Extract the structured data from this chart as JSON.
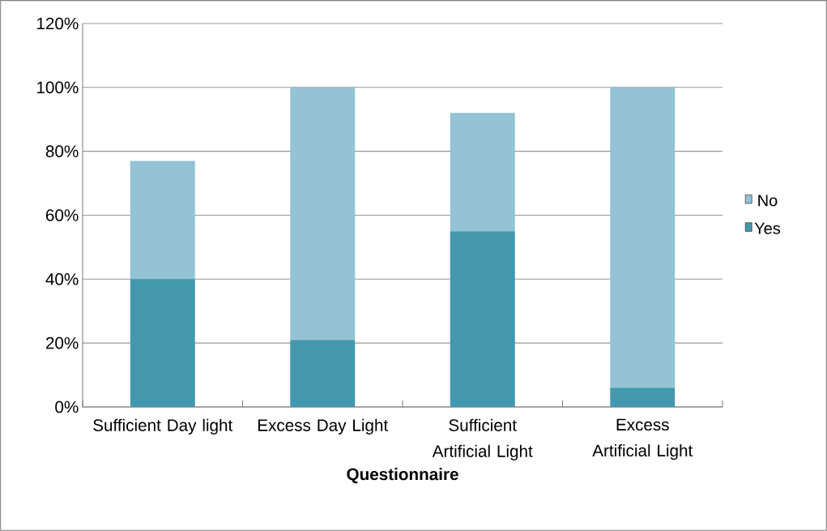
{
  "chart_data": {
    "type": "bar",
    "stacked": true,
    "xlabel": "Questionnaire",
    "categories": [
      "Sufficient Day light",
      "Excess Day Light",
      "Sufficient Artificial Light",
      "Excess Artificial Light"
    ],
    "series": [
      {
        "name": "Yes",
        "color": "#4398ae",
        "values": [
          40,
          21,
          55,
          6
        ]
      },
      {
        "name": "No",
        "color": "#93c3d4",
        "values": [
          37,
          79,
          37,
          94
        ]
      }
    ],
    "ylim": [
      0,
      120
    ],
    "yticks": [
      {
        "value": 0,
        "label": "0%"
      },
      {
        "value": 20,
        "label": "20%"
      },
      {
        "value": 40,
        "label": "40%"
      },
      {
        "value": 60,
        "label": "60%"
      },
      {
        "value": 80,
        "label": "80%"
      },
      {
        "value": 100,
        "label": "100%"
      },
      {
        "value": 120,
        "label": "120%"
      }
    ],
    "grid": "y",
    "legend": "right"
  }
}
